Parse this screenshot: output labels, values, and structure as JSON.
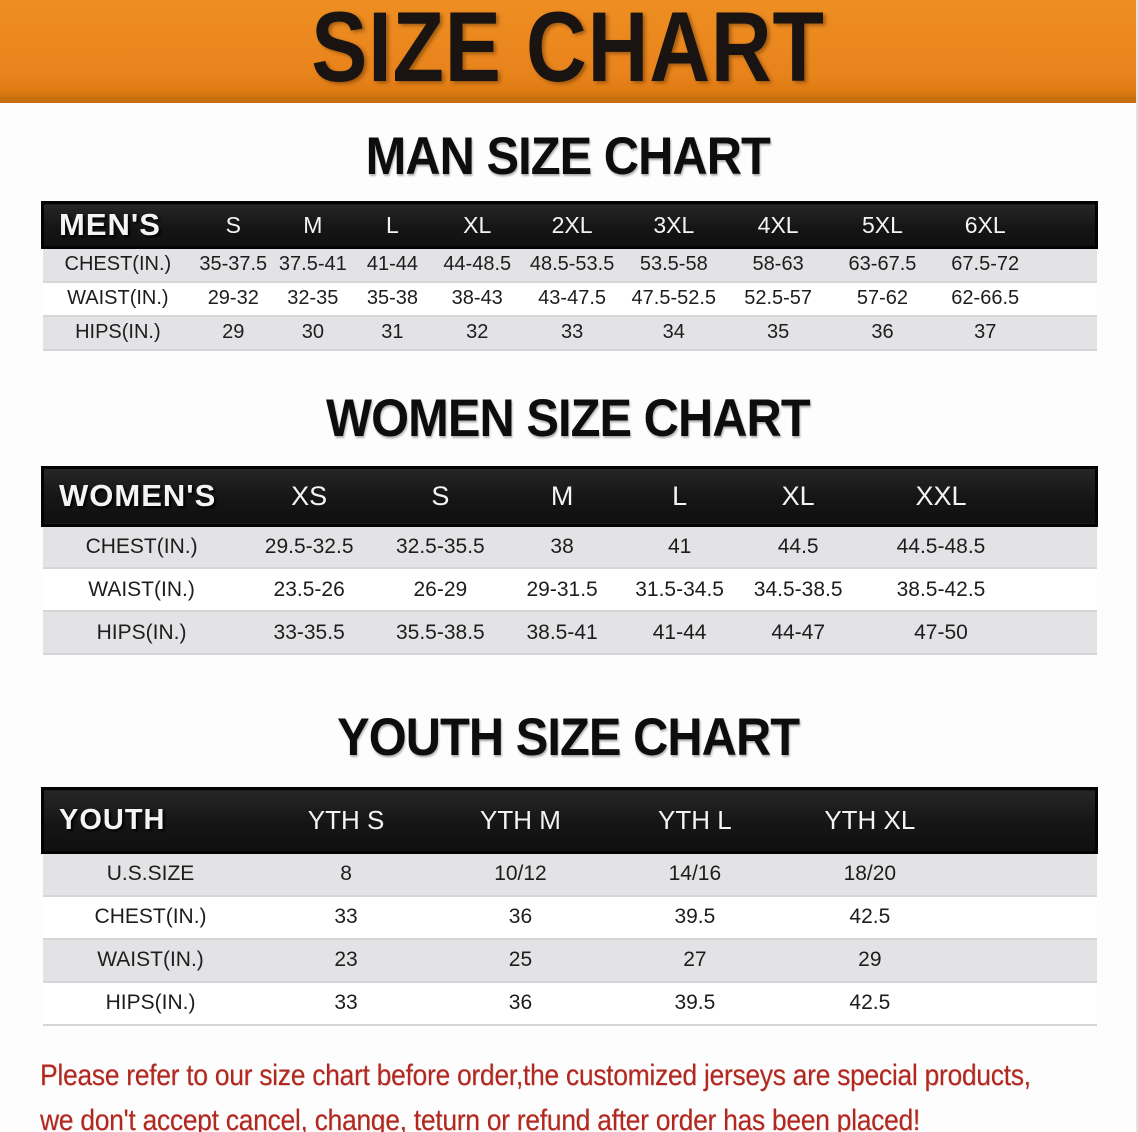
{
  "banner": {
    "title": "SIZE CHART",
    "bg_color": "#E8831B",
    "edge_color": "#C76F10",
    "text_color": "#191411"
  },
  "colors": {
    "table_header_bg": "#151515",
    "table_header_text": "#F4F4F2",
    "row_gray": "#E3E3E6",
    "row_white": "#FFFFFF",
    "cell_text": "#1D1D1D",
    "disclaimer_text": "#B3271E"
  },
  "sections": [
    {
      "id": "men",
      "heading": "MAN SIZE CHART",
      "header_label": "MEN'S",
      "columns": [
        "S",
        "M",
        "L",
        "XL",
        "2XL",
        "3XL",
        "4XL",
        "5XL",
        "6XL"
      ],
      "rows": [
        {
          "label": "CHEST(IN.)",
          "values": [
            "35-37.5",
            "37.5-41",
            "41-44",
            "44-48.5",
            "48.5-53.5",
            "53.5-58",
            "58-63",
            "63-67.5",
            "67.5-72"
          ]
        },
        {
          "label": "WAIST(IN.)",
          "values": [
            "29-32",
            "32-35",
            "35-38",
            "38-43",
            "43-47.5",
            "47.5-52.5",
            "52.5-57",
            "57-62",
            "62-66.5"
          ]
        },
        {
          "label": "HIPS(IN.)",
          "values": [
            "29",
            "30",
            "31",
            "32",
            "33",
            "34",
            "35",
            "36",
            "37"
          ]
        }
      ]
    },
    {
      "id": "women",
      "heading": "WOMEN SIZE CHART",
      "header_label": "WOMEN'S",
      "columns": [
        "XS",
        "S",
        "M",
        "L",
        "XL",
        "XXL"
      ],
      "rows": [
        {
          "label": "CHEST(IN.)",
          "values": [
            "29.5-32.5",
            "32.5-35.5",
            "38",
            "41",
            "44.5",
            "44.5-48.5"
          ]
        },
        {
          "label": "WAIST(IN.)",
          "values": [
            "23.5-26",
            "26-29",
            "29-31.5",
            "31.5-34.5",
            "34.5-38.5",
            "38.5-42.5"
          ]
        },
        {
          "label": "HIPS(IN.)",
          "values": [
            "33-35.5",
            "35.5-38.5",
            "38.5-41",
            "41-44",
            "44-47",
            "47-50"
          ]
        }
      ]
    },
    {
      "id": "youth",
      "heading": "YOUTH SIZE CHART",
      "header_label": "YOUTH",
      "columns": [
        "YTH S",
        "YTH M",
        "YTH L",
        "YTH XL"
      ],
      "rows": [
        {
          "label": "U.S.SIZE",
          "values": [
            "8",
            "10/12",
            "14/16",
            "18/20"
          ]
        },
        {
          "label": "CHEST(IN.)",
          "values": [
            "33",
            "36",
            "39.5",
            "42.5"
          ]
        },
        {
          "label": "WAIST(IN.)",
          "values": [
            "23",
            "25",
            "27",
            "29"
          ]
        },
        {
          "label": "HIPS(IN.)",
          "values": [
            "33",
            "36",
            "39.5",
            "42.5"
          ]
        }
      ]
    }
  ],
  "disclaimer": {
    "line1": "Please refer to our size chart before order,the customized jerseys are special products,",
    "line2": "we don't accept cancel, change, teturn or refund after order has been placed!"
  }
}
